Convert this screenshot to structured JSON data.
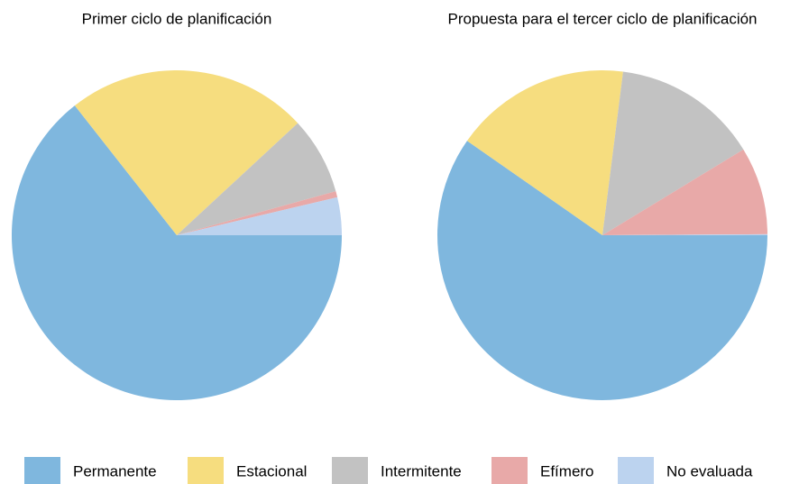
{
  "chart_data": [
    {
      "type": "pie",
      "title": "Primer ciclo de planificación",
      "categories": [
        "Permanente",
        "Estacional",
        "Intermitente",
        "Efímero",
        "No evaluada"
      ],
      "values": [
        64.4,
        23.7,
        7.6,
        0.6,
        3.7
      ],
      "colors": [
        "#7fb7de",
        "#f6dd7f",
        "#c2c2c2",
        "#e8a9a8",
        "#bcd3ef"
      ]
    },
    {
      "type": "pie",
      "title": "Propuesta para el tercer ciclo de planificación",
      "categories": [
        "Permanente",
        "Estacional",
        "Intermitente",
        "Efímero",
        "No evaluada"
      ],
      "values": [
        59.7,
        17.3,
        14.3,
        8.6,
        0.1
      ],
      "colors": [
        "#7fb7de",
        "#f6dd7f",
        "#c2c2c2",
        "#e8a9a8",
        "#bcd3ef"
      ]
    }
  ]
}
